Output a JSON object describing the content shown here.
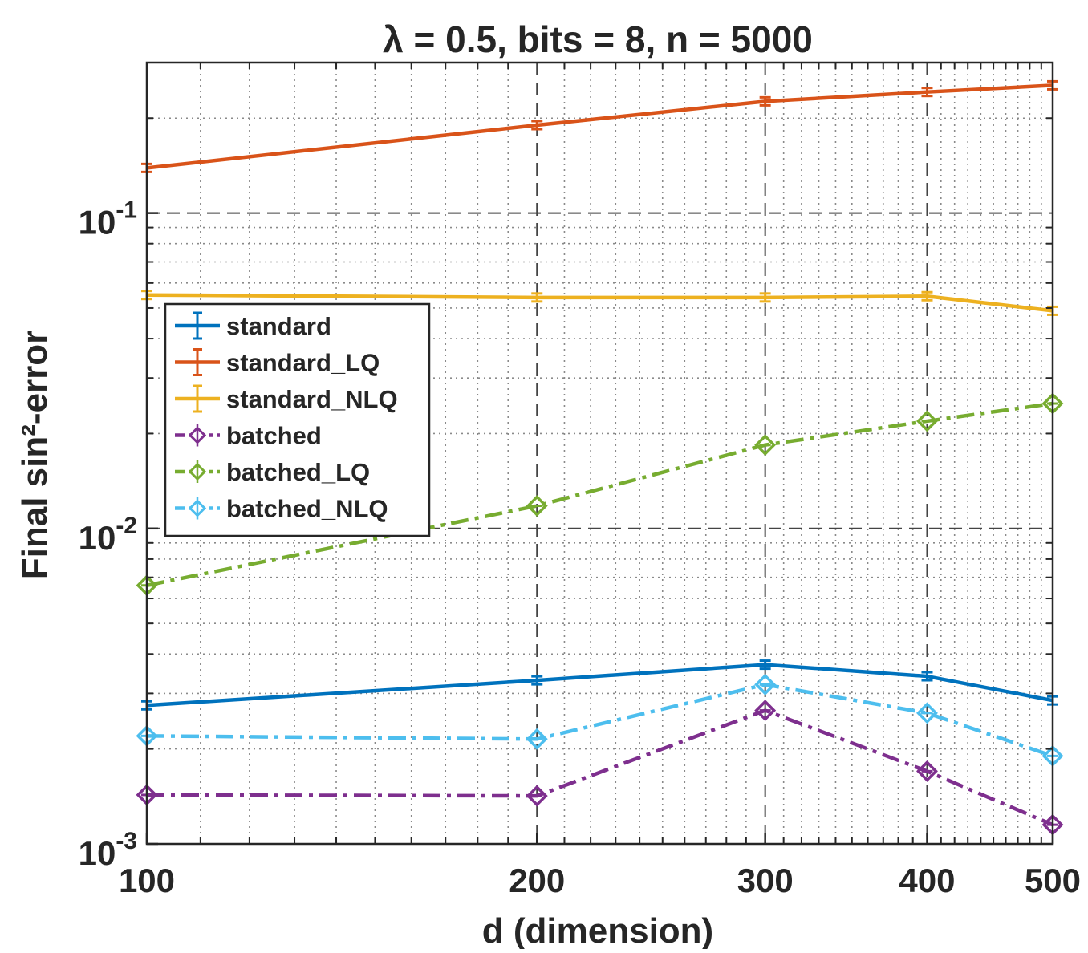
{
  "chart_data": {
    "type": "line",
    "title": "λ = 0.5, bits = 8, n = 5000",
    "xlabel": "d (dimension)",
    "ylabel": "Final sin²-error",
    "xscale": "log",
    "yscale": "log",
    "xlim": [
      100,
      500
    ],
    "ylim": [
      0.001,
      0.3
    ],
    "x": [
      100,
      200,
      300,
      400,
      500
    ],
    "xticklabels": [
      "100",
      "200",
      "300",
      "400",
      "500"
    ],
    "yticks": [
      {
        "value": 0.001,
        "base": "10",
        "exp": "-3"
      },
      {
        "value": 0.01,
        "base": "10",
        "exp": "-2"
      },
      {
        "value": 0.1,
        "base": "10",
        "exp": "-1"
      }
    ],
    "grid": true,
    "legend_position": "upper-left",
    "series": [
      {
        "name": "standard",
        "color": "#0072BD",
        "style": "solid",
        "marker": "errorbar",
        "values": [
          0.00275,
          0.0033,
          0.0037,
          0.0034,
          0.00285
        ]
      },
      {
        "name": "standard_LQ",
        "color": "#D95319",
        "style": "solid",
        "marker": "errorbar",
        "values": [
          0.139,
          0.19,
          0.226,
          0.242,
          0.254
        ]
      },
      {
        "name": "standard_NLQ",
        "color": "#EDB120",
        "style": "solid",
        "marker": "errorbar",
        "values": [
          0.055,
          0.054,
          0.054,
          0.0545,
          0.049
        ]
      },
      {
        "name": "batched",
        "color": "#7E2F8E",
        "style": "dashdot",
        "marker": "diamond",
        "values": [
          0.00143,
          0.00142,
          0.00265,
          0.0017,
          0.00115
        ]
      },
      {
        "name": "batched_LQ",
        "color": "#77AC30",
        "style": "dashdot",
        "marker": "diamond",
        "values": [
          0.0066,
          0.0118,
          0.0184,
          0.0219,
          0.0249
        ]
      },
      {
        "name": "batched_NLQ",
        "color": "#4DBEEE",
        "style": "dashdot",
        "marker": "diamond",
        "values": [
          0.0022,
          0.00215,
          0.0032,
          0.0026,
          0.0019
        ]
      }
    ]
  }
}
